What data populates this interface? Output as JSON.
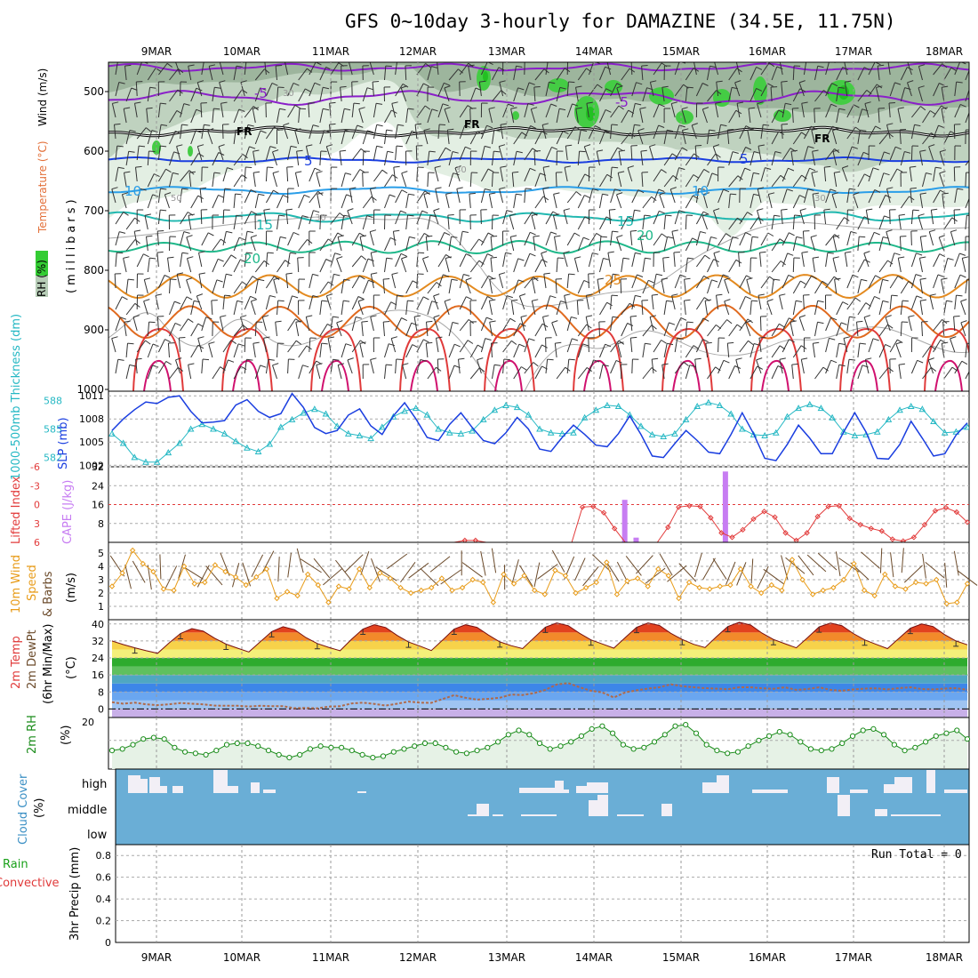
{
  "title": "GFS 0~10day 3-hourly for DAMAZINE (34.5E, 11.75N)",
  "date_labels": [
    "9MAR",
    "10MAR",
    "11MAR",
    "12MAR",
    "13MAR",
    "14MAR",
    "15MAR",
    "16MAR",
    "17MAR",
    "18MAR"
  ],
  "colors": {
    "rh_light": "#dfeedf",
    "rh_mid": "#b6ccb6",
    "rh_dark": "#8fa88f",
    "rh_bright": "#33cc33",
    "temp_purple": "#8a1fc9",
    "temp_blue": "#1a3ee0",
    "temp_lightblue": "#2a9ee8",
    "temp_cyan": "#21b8b0",
    "temp_green": "#1fb88a",
    "temp_orange": "#e38a1f",
    "temp_darkorange": "#e06a1f",
    "temp_red": "#e03a3a",
    "temp_magenta": "#d0106e",
    "slp_line": "#1a3ee0",
    "thickness_line": "#25b8c4",
    "lifted_line": "#e23b3b",
    "cape_bar": "#c77df2",
    "wind_speed": "#e89c1a",
    "rh2m": "#1a8c1a",
    "rh2m_fill": "#e6f2e6",
    "cloud_bg": "#6aaed6",
    "cloud_bar": "#f2eff6",
    "precip_total": "#18a018",
    "precip_conv": "#e03a3a"
  },
  "panels": {
    "upper": {
      "ylabels": [
        "Wind (m/s)",
        "Temperature (°C)",
        "RH (%)",
        "(millibars)"
      ],
      "ticks": [
        "500",
        "600",
        "700",
        "800",
        "900",
        "1000"
      ],
      "contour_labels": {
        "temp": [
          "-5",
          "-5",
          "5",
          "5",
          "10",
          "10",
          "15",
          "15",
          "20",
          "20",
          "25"
        ],
        "freezing": "FR",
        "rh": [
          "30",
          "30",
          "30",
          "50",
          "30"
        ]
      }
    },
    "slp": {
      "ylabel_left": "1000-500mb Thickness (dm)",
      "ylabel_right": "SLP (mb)",
      "ticks_left": [
        "588",
        "585",
        "582"
      ],
      "ticks_right": [
        "1011",
        "1008",
        "1005",
        "1002"
      ]
    },
    "cape": {
      "ylabel_left": "Lifted Index",
      "ylabel_right": "CAPE (J/kg)",
      "ticks_left": [
        "-6",
        "-3",
        "0",
        "3",
        "6"
      ],
      "ticks_right": [
        "32",
        "24",
        "16",
        "8"
      ]
    },
    "wind10m": {
      "ylabel_1": "10m Wind",
      "ylabel_2": "Speed",
      "ylabel_3": "& Barbs",
      "unit": "(m/s)",
      "ticks": [
        "5",
        "4",
        "3",
        "2",
        "1"
      ]
    },
    "temp2m": {
      "ylabel_1": "2m Temp",
      "ylabel_2": "2m DewPt",
      "ylabel_3": "(6hr Min/Max)",
      "unit": "(°C)",
      "ticks": [
        "40",
        "32",
        "24",
        "16",
        "8",
        "0"
      ]
    },
    "rh2m": {
      "ylabel": "2m RH",
      "unit": "(%)",
      "ticks": [
        "20"
      ]
    },
    "cloud": {
      "ylabel": "Cloud Cover",
      "unit": "(%)",
      "levels": [
        "high",
        "middle",
        "low"
      ]
    },
    "precip": {
      "ylabel_1": "Total / Rain",
      "ylabel_2": "Convective",
      "ylabel_3": "3hr Precip (mm)",
      "ticks": [
        "0.8",
        "0.6",
        "0.4",
        "0.2",
        "0"
      ],
      "run_total": "Run Total = 0"
    }
  },
  "chart_data": [
    {
      "type": "line",
      "title": "1000-500mb Thickness & SLP",
      "x": "3-hourly, 08MAR 12Z – 18MAR 06Z",
      "series": [
        {
          "name": "SLP (mb)",
          "values": [
            1006.5,
            1008.0,
            1009.2,
            1010.2,
            1010.0,
            1010.8,
            1011.0,
            1009.0,
            1007.5,
            1007.6,
            1007.8,
            1009.8,
            1010.5,
            1009.0,
            1008.2,
            1008.7,
            1011.3,
            1009.5,
            1006.9,
            1006.1,
            1006.5,
            1008.5,
            1009.3,
            1007.1,
            1006.0,
            1008.4,
            1010.1,
            1008.0,
            1005.6,
            1005.2,
            1007.3,
            1008.8,
            1006.9,
            1005.2,
            1004.8,
            1006.2,
            1008.2,
            1006.7,
            1004.1,
            1003.8,
            1005.6,
            1007.2,
            1006.0,
            1004.6,
            1004.4,
            1006.1,
            1008.4,
            1006.0,
            1003.2,
            1003.0,
            1004.8,
            1006.5,
            1005.2,
            1003.7,
            1003.5,
            1006.0,
            1008.8,
            1006.1,
            1002.9,
            1002.6,
            1004.7,
            1007.2,
            1005.5,
            1003.5,
            1003.5,
            1006.3,
            1008.8,
            1006.3,
            1002.9,
            1002.8,
            1004.7,
            1007.7,
            1005.5,
            1003.2,
            1003.5,
            1005.9,
            1007.5
          ]
        },
        {
          "name": "1000-500mb Thickness (dm)",
          "values": [
            584.5,
            583.5,
            582.0,
            581.5,
            581.5,
            582.5,
            583.5,
            585.0,
            585.5,
            585.0,
            584.5,
            583.7,
            583.0,
            582.6,
            583.4,
            585.2,
            586.0,
            586.7,
            587.1,
            586.6,
            585.3,
            584.5,
            584.3,
            584.0,
            585.2,
            586.3,
            586.9,
            587.2,
            586.5,
            585.0,
            584.6,
            584.5,
            584.8,
            586.0,
            587.0,
            587.5,
            587.3,
            586.5,
            585.0,
            584.6,
            584.5,
            584.6,
            586.2,
            587.0,
            587.5,
            587.4,
            586.5,
            585.3,
            584.4,
            584.2,
            584.5,
            586.0,
            587.4,
            587.8,
            587.5,
            586.6,
            585.0,
            584.4,
            584.3,
            584.6,
            586.3,
            587.2,
            587.6,
            587.2,
            586.2,
            584.7,
            584.3,
            584.4,
            584.7,
            586.0,
            587.0,
            587.4,
            587.1,
            585.8,
            584.6,
            584.7,
            585.2
          ]
        }
      ],
      "ylim_left": [
        581,
        589
      ],
      "ylim_right": [
        1001.8,
        1011.6
      ]
    },
    {
      "type": "bar",
      "title": "Lifted Index & CAPE",
      "series": [
        {
          "name": "CAPE (J/kg)",
          "values": [
            {
              "x": 14.35,
              "y": 18
            },
            {
              "x": 14.48,
              "y": 2
            },
            {
              "x": 15.5,
              "y": 30
            }
          ]
        },
        {
          "name": "Lifted Index",
          "values": [
            6,
            6,
            6,
            6,
            6,
            6,
            6,
            6,
            6,
            6,
            6,
            6,
            6,
            6,
            6,
            6,
            6,
            6,
            6,
            6,
            6,
            6,
            6,
            6,
            6,
            6,
            6,
            6,
            6,
            6,
            6,
            6,
            6,
            5.7,
            5.7,
            6,
            6,
            6,
            6,
            6,
            6,
            6,
            6,
            6,
            0.4,
            0.3,
            1.3,
            3.8,
            6,
            6,
            6,
            6,
            3.6,
            0.4,
            0.2,
            0.3,
            2.1,
            4.5,
            5.2,
            4.0,
            2.3,
            1.1,
            2.0,
            4.5,
            5.7,
            4.5,
            1.9,
            0.3,
            0.2,
            2.2,
            3.2,
            3.8,
            4.2,
            5.5,
            5.8,
            5.2,
            3.2,
            1.0,
            0.5,
            1.2,
            2.8
          ]
        }
      ],
      "ylim_right": [
        0,
        32
      ],
      "ylim_left": [
        -6,
        6
      ]
    },
    {
      "type": "line",
      "title": "10m Wind Speed",
      "series": [
        {
          "name": "10m Wind Speed (m/s)",
          "values": [
            2.5,
            3.5,
            5.2,
            4.2,
            3.6,
            2.3,
            2.2,
            4.0,
            2.7,
            2.8,
            4.1,
            3.6,
            3.2,
            2.6,
            3.2,
            3.8,
            1.6,
            2.1,
            1.8,
            3.4,
            2.6,
            1.3,
            2.5,
            2.3,
            3.8,
            2.4,
            3.5,
            3.1,
            2.4,
            2.0,
            2.2,
            2.4,
            3.1,
            2.2,
            2.4,
            3.0,
            2.8,
            1.3,
            3.4,
            2.7,
            3.3,
            2.2,
            1.9,
            3.7,
            3.3,
            2.0,
            2.4,
            2.8,
            4.3,
            1.9,
            2.9,
            3.1,
            2.5,
            3.8,
            3.3,
            1.6,
            2.8,
            2.4,
            2.3,
            2.5,
            2.6,
            3.8,
            2.5,
            2.0,
            2.6,
            2.2,
            4.5,
            3.0,
            1.9,
            2.2,
            2.4,
            3.0,
            4.2,
            2.2,
            1.8,
            3.4,
            2.5,
            2.3,
            2.8,
            2.7,
            3.0,
            1.2,
            1.3,
            2.7
          ]
        }
      ],
      "ylim": [
        0,
        5.8
      ]
    },
    {
      "type": "area",
      "title": "2m Temperature & Dew Point",
      "series": [
        {
          "name": "2m Temp (°C)",
          "values": [
            32.0,
            30.3,
            28.8,
            27.4,
            26.2,
            31.0,
            35.5,
            37.8,
            36.6,
            33.3,
            30.5,
            28.6,
            26.8,
            31.6,
            36.4,
            38.7,
            37.3,
            33.6,
            30.8,
            29.0,
            27.4,
            32.8,
            37.6,
            39.6,
            38.3,
            34.6,
            31.5,
            29.6,
            27.5,
            32.5,
            37.6,
            39.6,
            38.4,
            34.8,
            31.6,
            29.8,
            28.4,
            33.5,
            38.5,
            40.5,
            39.2,
            35.6,
            32.5,
            30.6,
            28.6,
            33.6,
            38.4,
            40.5,
            39.3,
            35.6,
            32.7,
            30.4,
            28.9,
            34.0,
            38.8,
            40.8,
            39.5,
            35.7,
            32.7,
            30.7,
            28.8,
            33.6,
            38.6,
            40.4,
            39.2,
            35.5,
            32.5,
            30.4,
            28.4,
            33.2,
            38.0,
            40.0,
            38.8,
            35.0,
            32.0,
            30.2
          ]
        },
        {
          "name": "2m DewPt (°C)",
          "values": [
            3.2,
            2.5,
            3.0,
            2.2,
            1.8,
            2.2,
            2.8,
            2.5,
            2.2,
            1.6,
            1.5,
            1.5,
            1.2,
            1.5,
            1.3,
            1.3,
            0.4,
            0.5,
            0.3,
            1.1,
            1.3,
            2.6,
            3.0,
            2.4,
            1.6,
            2.5,
            3.5,
            3.0,
            2.9,
            4.7,
            6.5,
            5.3,
            4.4,
            4.8,
            5.3,
            6.8,
            6.6,
            7.4,
            9.0,
            11.5,
            12.2,
            10.2,
            8.6,
            7.8,
            5.4,
            7.8,
            8.8,
            9.6,
            10.2,
            11.6,
            10.7,
            10.2,
            9.8,
            9.6,
            9.3,
            10.2,
            10.2,
            9.7,
            9.5,
            10.2,
            9.0,
            9.4,
            10.2,
            9.0,
            8.6,
            9.2,
            9.6,
            9.7,
            9.2,
            9.8,
            10.2,
            9.4,
            9.2,
            9.6,
            9.8,
            9.0
          ]
        }
      ],
      "ylim": [
        -4,
        42
      ]
    },
    {
      "type": "area",
      "title": "2m RH",
      "series": [
        {
          "name": "2m RH (%)",
          "values": [
            13,
            14,
            17,
            21,
            22,
            21,
            15,
            12,
            11,
            10,
            13,
            17,
            18,
            18,
            16,
            13,
            10,
            8,
            10,
            14,
            16,
            15,
            15,
            13,
            10,
            8,
            9,
            12,
            14,
            16,
            18,
            18,
            15,
            12,
            11,
            13,
            15,
            19,
            24,
            27,
            24,
            18,
            14,
            16,
            19,
            23,
            28,
            30,
            25,
            17,
            14,
            15,
            19,
            24,
            30,
            31,
            25,
            17,
            13,
            11,
            12,
            16,
            20,
            23,
            26,
            24,
            19,
            14,
            13,
            14,
            18,
            23,
            27,
            28,
            24,
            17,
            13,
            15,
            19,
            23,
            25,
            27,
            21
          ]
        }
      ],
      "ylim": [
        0,
        36
      ]
    },
    {
      "type": "bar",
      "title": "Cloud Cover",
      "series": [
        {
          "name": "high",
          "note": "partial high cloud"
        },
        {
          "name": "middle",
          "note": "mid-level cloud on 12-13MAR, 14MAR, 15MAR, 16MAR, 17MAR"
        },
        {
          "name": "low",
          "note": "none"
        }
      ]
    },
    {
      "type": "bar",
      "title": "3hr Precip",
      "series": [
        {
          "name": "Total / Rain",
          "values": []
        },
        {
          "name": "Convective",
          "values": []
        }
      ],
      "ylim": [
        0,
        0.9
      ]
    }
  ]
}
